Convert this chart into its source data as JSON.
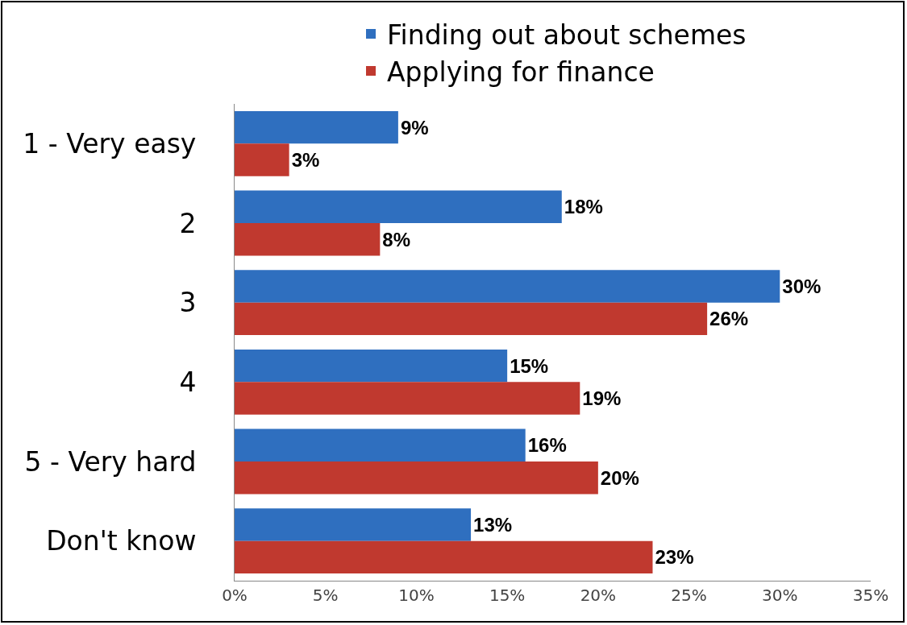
{
  "chart_data": {
    "type": "bar",
    "orientation": "horizontal",
    "categories": [
      "1 - Very easy",
      "2",
      "3",
      "4",
      "5 - Very hard",
      "Don't know"
    ],
    "series": [
      {
        "name": "Finding out about schemes",
        "color": "#2f6fbf",
        "values": [
          9,
          18,
          30,
          15,
          16,
          13
        ],
        "value_labels": [
          "9%",
          "18%",
          "30%",
          "15%",
          "16%",
          "13%"
        ]
      },
      {
        "name": "Applying for finance",
        "color": "#c0392f",
        "values": [
          3,
          8,
          26,
          19,
          20,
          23
        ],
        "value_labels": [
          "3%",
          "8%",
          "26%",
          "19%",
          "20%",
          "23%"
        ]
      }
    ],
    "xlim": [
      0,
      35
    ],
    "xticks": [
      {
        "value": 0,
        "label": "0%"
      },
      {
        "value": 5,
        "label": "5%"
      },
      {
        "value": 10,
        "label": "10%"
      },
      {
        "value": 15,
        "label": "15%"
      },
      {
        "value": 20,
        "label": "20%"
      },
      {
        "value": 25,
        "label": "25%"
      },
      {
        "value": 30,
        "label": "30%"
      },
      {
        "value": 35,
        "label": "35%"
      }
    ],
    "grid": false,
    "legend": "top"
  }
}
